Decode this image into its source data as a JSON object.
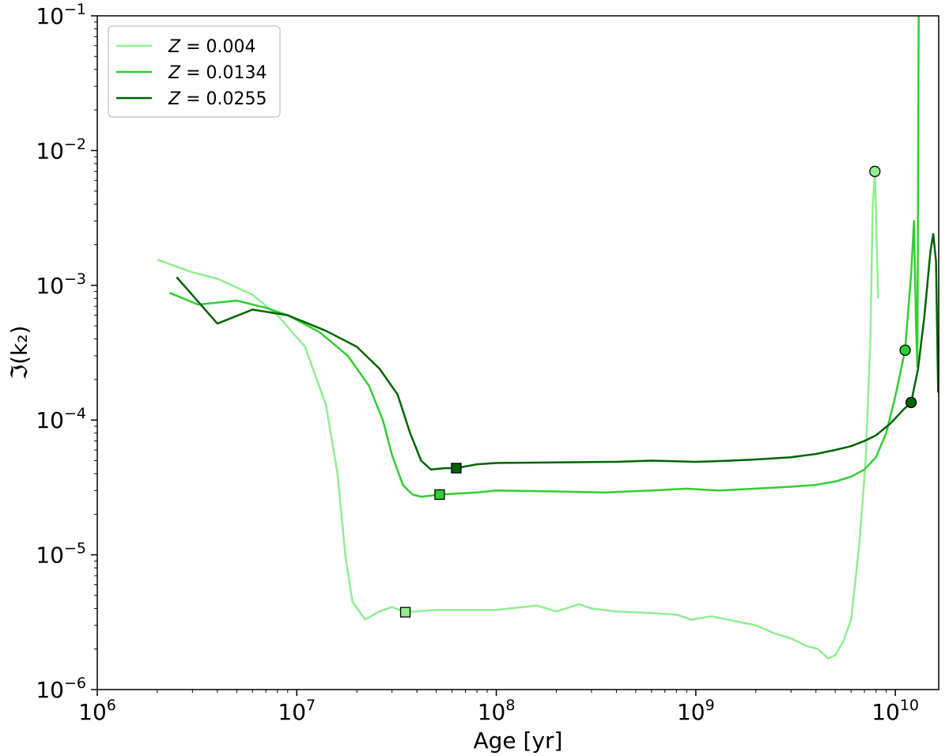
{
  "chart_data": {
    "type": "line",
    "xlabel": "Age [yr]",
    "ylabel": "ℑ(k₂)",
    "xscale": "log",
    "yscale": "log",
    "xlim": [
      1000000,
      16500000000
    ],
    "ylim": [
      1e-06,
      0.1
    ],
    "x_ticks": [
      {
        "value": 1000000,
        "base": "10",
        "exp": "6"
      },
      {
        "value": 10000000,
        "base": "10",
        "exp": "7"
      },
      {
        "value": 100000000,
        "base": "10",
        "exp": "8"
      },
      {
        "value": 1000000000,
        "base": "10",
        "exp": "9"
      },
      {
        "value": 10000000000,
        "base": "10",
        "exp": "10"
      }
    ],
    "y_ticks": [
      {
        "value": 1e-06,
        "base": "10",
        "exp": "−6"
      },
      {
        "value": 1e-05,
        "base": "10",
        "exp": "−5"
      },
      {
        "value": 0.0001,
        "base": "10",
        "exp": "−4"
      },
      {
        "value": 0.001,
        "base": "10",
        "exp": "−3"
      },
      {
        "value": 0.01,
        "base": "10",
        "exp": "−2"
      },
      {
        "value": 0.1,
        "base": "10",
        "exp": "−1"
      }
    ],
    "grid": false,
    "legend_position": "top-left",
    "series": [
      {
        "name": "Z = 0.004",
        "legend_var": "Z",
        "legend_val": " = 0.004",
        "color": "#90ee90",
        "points": [
          [
            2000000.0,
            0.00155
          ],
          [
            3000000.0,
            0.00125
          ],
          [
            4000000.0,
            0.00112
          ],
          [
            6000000.0,
            0.00085
          ],
          [
            8000000.0,
            0.0006
          ],
          [
            11000000.0,
            0.00035
          ],
          [
            14000000.0,
            0.00013
          ],
          [
            16000000.0,
            4e-05
          ],
          [
            17500000.0,
            1e-05
          ],
          [
            19000000.0,
            4.5e-06
          ],
          [
            22000000.0,
            3.3e-06
          ],
          [
            26000000.0,
            3.8e-06
          ],
          [
            30000000.0,
            4.1e-06
          ],
          [
            35000000.0,
            3.75e-06
          ],
          [
            50000000.0,
            3.9e-06
          ],
          [
            80000000.0,
            3.9e-06
          ],
          [
            100000000.0,
            3.9e-06
          ],
          [
            160000000.0,
            4.2e-06
          ],
          [
            200000000.0,
            3.8e-06
          ],
          [
            260000000.0,
            4.3e-06
          ],
          [
            300000000.0,
            4e-06
          ],
          [
            400000000.0,
            3.8e-06
          ],
          [
            600000000.0,
            3.7e-06
          ],
          [
            800000000.0,
            3.6e-06
          ],
          [
            950000000.0,
            3.3e-06
          ],
          [
            1200000000.0,
            3.5e-06
          ],
          [
            1600000000.0,
            3.2e-06
          ],
          [
            2000000000.0,
            3e-06
          ],
          [
            2500000000.0,
            2.6e-06
          ],
          [
            3000000000.0,
            2.4e-06
          ],
          [
            3600000000.0,
            2.1e-06
          ],
          [
            4100000000.0,
            2e-06
          ],
          [
            4600000000.0,
            1.7e-06
          ],
          [
            5000000000.0,
            1.8e-06
          ],
          [
            5500000000.0,
            2.3e-06
          ],
          [
            6000000000.0,
            3.3e-06
          ],
          [
            6600000000.0,
            1.2e-05
          ],
          [
            7100000000.0,
            5e-05
          ],
          [
            7500000000.0,
            0.0004
          ],
          [
            7700000000.0,
            0.0038
          ],
          [
            7900000000.0,
            0.007
          ],
          [
            8200000000.0,
            0.0008
          ]
        ],
        "marker_square": [
          35000000.0,
          3.75e-06
        ],
        "marker_circle": [
          7900000000.0,
          0.007
        ]
      },
      {
        "name": "Z = 0.0134",
        "legend_var": "Z",
        "legend_val": " = 0.0134",
        "color": "#32cd32",
        "points": [
          [
            2300000.0,
            0.00088
          ],
          [
            3200000.0,
            0.00072
          ],
          [
            5000000.0,
            0.00077
          ],
          [
            7000000.0,
            0.00068
          ],
          [
            9000000.0,
            0.0006
          ],
          [
            13000000.0,
            0.00045
          ],
          [
            18000000.0,
            0.0003
          ],
          [
            23000000.0,
            0.00018
          ],
          [
            27000000.0,
            0.0001
          ],
          [
            30000000.0,
            5.5e-05
          ],
          [
            34000000.0,
            3.3e-05
          ],
          [
            38000000.0,
            2.8e-05
          ],
          [
            42000000.0,
            2.7e-05
          ],
          [
            52000000.0,
            2.8e-05
          ],
          [
            80000000.0,
            2.9e-05
          ],
          [
            100000000.0,
            3e-05
          ],
          [
            200000000.0,
            2.95e-05
          ],
          [
            350000000.0,
            2.9e-05
          ],
          [
            600000000.0,
            3e-05
          ],
          [
            900000000.0,
            3.1e-05
          ],
          [
            1300000000.0,
            3e-05
          ],
          [
            2000000000.0,
            3.1e-05
          ],
          [
            3000000000.0,
            3.2e-05
          ],
          [
            4000000000.0,
            3.3e-05
          ],
          [
            5000000000.0,
            3.5e-05
          ],
          [
            6000000000.0,
            3.8e-05
          ],
          [
            7000000000.0,
            4.3e-05
          ],
          [
            8000000000.0,
            5.3e-05
          ],
          [
            9000000000.0,
            8e-05
          ],
          [
            10000000000.0,
            0.00015
          ],
          [
            11200000000.0,
            0.00033
          ],
          [
            12000000000.0,
            0.0012
          ],
          [
            12400000000.0,
            0.003
          ],
          [
            12700000000.0,
            0.0005
          ],
          [
            12900000000.0,
            0.00025
          ],
          [
            13100000000.0,
            0.1
          ]
        ],
        "marker_square": [
          52000000.0,
          2.8e-05
        ],
        "marker_circle": [
          11200000000.0,
          0.00033
        ]
      },
      {
        "name": "Z = 0.0255",
        "legend_var": "Z",
        "legend_val": " = 0.0255",
        "color": "#006400",
        "points": [
          [
            2500000.0,
            0.00115
          ],
          [
            4000000.0,
            0.00052
          ],
          [
            6000000.0,
            0.00066
          ],
          [
            9000000.0,
            0.0006
          ],
          [
            14000000.0,
            0.00046
          ],
          [
            20000000.0,
            0.00035
          ],
          [
            26000000.0,
            0.00024
          ],
          [
            32000000.0,
            0.000155
          ],
          [
            37000000.0,
            8e-05
          ],
          [
            42000000.0,
            5e-05
          ],
          [
            47000000.0,
            4.3e-05
          ],
          [
            55000000.0,
            4.4e-05
          ],
          [
            63000000.0,
            4.4e-05
          ],
          [
            80000000.0,
            4.7e-05
          ],
          [
            100000000.0,
            4.8e-05
          ],
          [
            200000000.0,
            4.85e-05
          ],
          [
            400000000.0,
            4.9e-05
          ],
          [
            600000000.0,
            5e-05
          ],
          [
            1000000000.0,
            4.9e-05
          ],
          [
            1500000000.0,
            5e-05
          ],
          [
            2000000000.0,
            5.1e-05
          ],
          [
            3000000000.0,
            5.3e-05
          ],
          [
            4000000000.0,
            5.6e-05
          ],
          [
            5000000000.0,
            6e-05
          ],
          [
            6000000000.0,
            6.4e-05
          ],
          [
            7000000000.0,
            7e-05
          ],
          [
            8000000000.0,
            7.7e-05
          ],
          [
            9500000000.0,
            9.5e-05
          ],
          [
            11000000000.0,
            0.00012
          ],
          [
            12000000000.0,
            0.000135
          ],
          [
            13000000000.0,
            0.00024
          ],
          [
            14000000000.0,
            0.0006
          ],
          [
            15000000000.0,
            0.0018
          ],
          [
            15500000000.0,
            0.0024
          ],
          [
            16000000000.0,
            0.0015
          ],
          [
            16400000000.0,
            0.00016
          ]
        ],
        "marker_square": [
          63000000.0,
          4.4e-05
        ],
        "marker_circle": [
          12000000000.0,
          0.000135
        ]
      }
    ]
  }
}
